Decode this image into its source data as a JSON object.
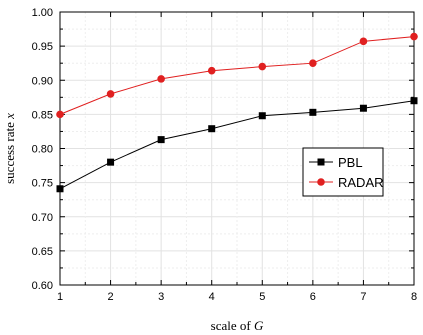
{
  "chart_data": {
    "type": "line",
    "x": [
      1,
      2,
      3,
      4,
      5,
      6,
      7,
      8
    ],
    "xlabel_prefix": "scale of ",
    "xlabel_var": "G",
    "ylabel_prefix": "success rate ",
    "ylabel_var": "x",
    "xlim": [
      1,
      8
    ],
    "ylim": [
      0.6,
      1.0
    ],
    "xticks": [
      "1",
      "2",
      "3",
      "4",
      "5",
      "6",
      "7",
      "8"
    ],
    "yticks": [
      "0.60",
      "0.65",
      "0.70",
      "0.75",
      "0.80",
      "0.85",
      "0.90",
      "0.95",
      "1.00"
    ],
    "grid": true,
    "legend_position": "right",
    "series": [
      {
        "name": "PBL",
        "color": "#000000",
        "marker": "square",
        "values": [
          0.741,
          0.78,
          0.813,
          0.829,
          0.848,
          0.853,
          0.859,
          0.87
        ]
      },
      {
        "name": "RADAR",
        "color": "#e02020",
        "marker": "circle",
        "values": [
          0.85,
          0.88,
          0.902,
          0.914,
          0.92,
          0.925,
          0.957,
          0.964
        ]
      }
    ]
  }
}
